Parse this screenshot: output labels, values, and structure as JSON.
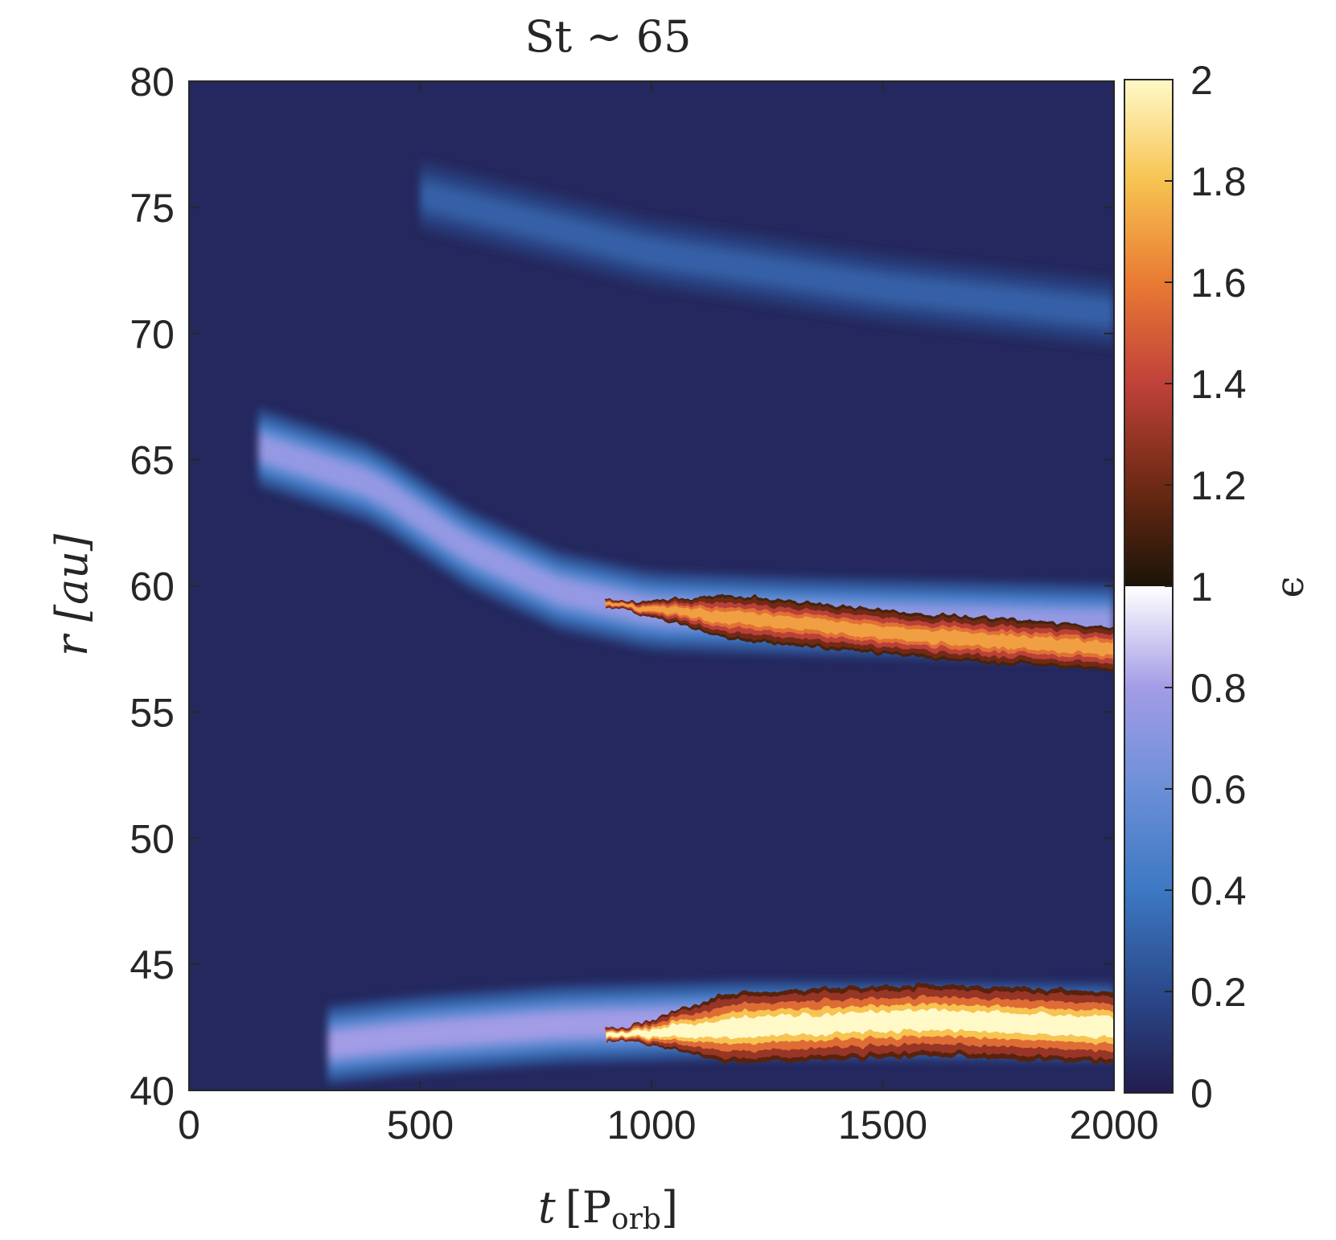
{
  "chart_data": {
    "type": "heatmap",
    "title": "St ∼ 65",
    "xlabel": {
      "main": "t",
      "unit_open": "[P",
      "unit_sub": "orb",
      "unit_close": "]"
    },
    "ylabel": "r [au]",
    "xlim": [
      0,
      2000
    ],
    "ylim": [
      40,
      80
    ],
    "x_ticks": [
      0,
      500,
      1000,
      1500,
      2000
    ],
    "y_ticks": [
      40,
      45,
      50,
      55,
      60,
      65,
      70,
      75,
      80
    ],
    "colorbar": {
      "label": "ϵ",
      "range": [
        0,
        2
      ],
      "ticks": [
        0,
        0.2,
        0.4,
        0.6,
        0.8,
        1,
        1.2,
        1.4,
        1.6,
        1.8,
        2
      ],
      "lower_colormap": [
        "#221c4e",
        "#2b4a8c",
        "#3d78c2",
        "#6b8fd8",
        "#a39ce6",
        "#ffffff"
      ],
      "upper_colormap": [
        "#1b1409",
        "#6e2a14",
        "#c0413a",
        "#e97a33",
        "#f7c351",
        "#fff9c8"
      ]
    },
    "background_value": 0.05,
    "features": [
      {
        "name": "outer ring",
        "center": [
          [
            500,
            75.5
          ],
          [
            1000,
            73.2
          ],
          [
            1500,
            71.8
          ],
          [
            2000,
            70.8
          ]
        ],
        "width": 1.6,
        "peak": 0.3
      },
      {
        "name": "middle ring",
        "center": [
          [
            150,
            65.5
          ],
          [
            400,
            64
          ],
          [
            600,
            61.5
          ],
          [
            800,
            59.8
          ],
          [
            1000,
            59
          ],
          [
            1300,
            58.8
          ],
          [
            2000,
            58.5
          ]
        ],
        "width": 1.8,
        "peak": 0.75
      },
      {
        "name": "middle ring dense core",
        "center": [
          [
            900,
            59.3
          ],
          [
            1200,
            58.7
          ],
          [
            1600,
            58
          ],
          [
            2000,
            57.5
          ]
        ],
        "width": 1.0,
        "peak": 1.7
      },
      {
        "name": "inner ring",
        "center": [
          [
            300,
            41.8
          ],
          [
            500,
            42.2
          ],
          [
            800,
            42.6
          ],
          [
            1200,
            42.8
          ],
          [
            2000,
            42.7
          ]
        ],
        "width": 1.8,
        "peak": 0.8
      },
      {
        "name": "inner ring dense core",
        "center": [
          [
            900,
            42.2
          ],
          [
            1200,
            42.5
          ],
          [
            1600,
            42.8
          ],
          [
            2000,
            42.5
          ]
        ],
        "width": 1.6,
        "peak": 2.0
      }
    ]
  }
}
